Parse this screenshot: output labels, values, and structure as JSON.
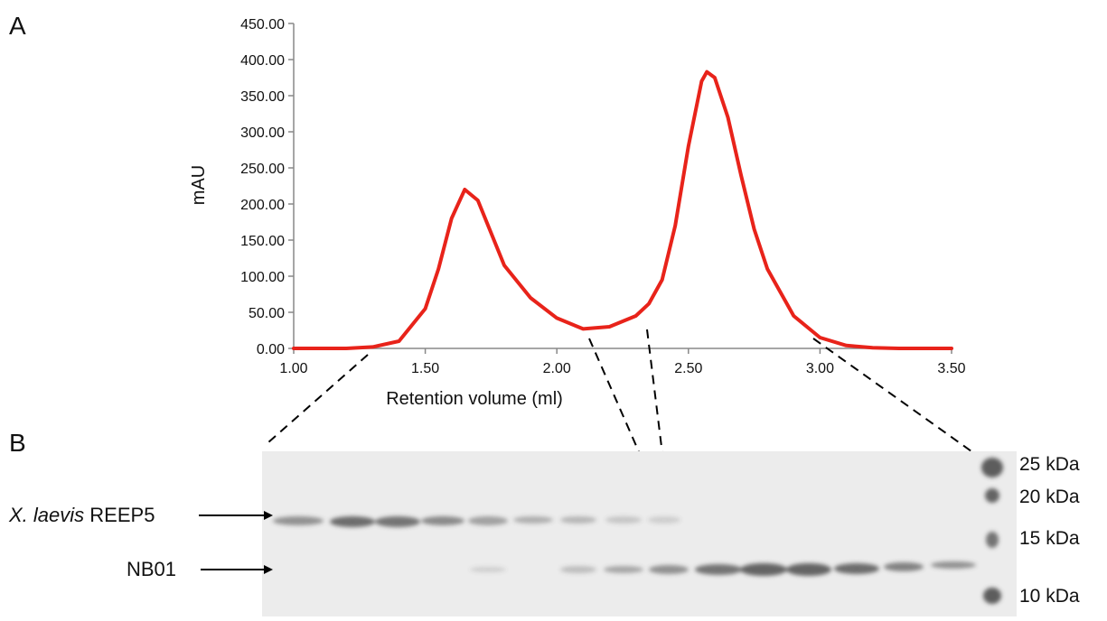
{
  "chart_data": {
    "type": "line",
    "x_label": "Retention volume (ml)",
    "y_label": "mAU",
    "series": [
      {
        "color": "#e8231a",
        "x": [
          1.0,
          1.2,
          1.3,
          1.4,
          1.5,
          1.55,
          1.6,
          1.65,
          1.7,
          1.75,
          1.8,
          1.9,
          2.0,
          2.1,
          2.2,
          2.3,
          2.35,
          2.4,
          2.45,
          2.5,
          2.55,
          2.57,
          2.6,
          2.65,
          2.7,
          2.75,
          2.8,
          2.9,
          3.0,
          3.1,
          3.2,
          3.3,
          3.5
        ],
        "values": [
          0,
          0,
          2,
          10,
          55,
          110,
          180,
          220,
          205,
          160,
          115,
          70,
          42,
          27,
          30,
          45,
          62,
          95,
          170,
          280,
          370,
          383,
          375,
          320,
          240,
          165,
          110,
          45,
          15,
          4,
          1,
          0,
          0
        ]
      }
    ],
    "xlim": [
      1.0,
      3.5
    ],
    "xticks": [
      {
        "value": 1.0,
        "label": "1.00"
      },
      {
        "value": 1.5,
        "label": "1.50"
      },
      {
        "value": 2.0,
        "label": "2.00"
      },
      {
        "value": 2.5,
        "label": "2.50"
      },
      {
        "value": 3.0,
        "label": "3.00"
      },
      {
        "value": 3.5,
        "label": "3.50"
      }
    ],
    "ylim": [
      0,
      450
    ],
    "yticks": [
      {
        "value": 0,
        "label": "0.00"
      },
      {
        "value": 50,
        "label": "50.00"
      },
      {
        "value": 100,
        "label": "100.00"
      },
      {
        "value": 150,
        "label": "150.00"
      },
      {
        "value": 200,
        "label": "200.00"
      },
      {
        "value": 250,
        "label": "250.00"
      },
      {
        "value": 300,
        "label": "300.00"
      },
      {
        "value": 350,
        "label": "350.00"
      },
      {
        "value": 400,
        "label": "400.00"
      },
      {
        "value": 450,
        "label": "450.00"
      }
    ]
  },
  "panel_labels": [
    "A",
    "B"
  ],
  "gel": {
    "bands": [
      {
        "label_italic": "X. laevis",
        "label": "REEP5"
      },
      {
        "label": "NB01"
      }
    ],
    "markers": [
      "25 kDa",
      "20 kDa",
      "15 kDa",
      "10 kDa"
    ]
  }
}
